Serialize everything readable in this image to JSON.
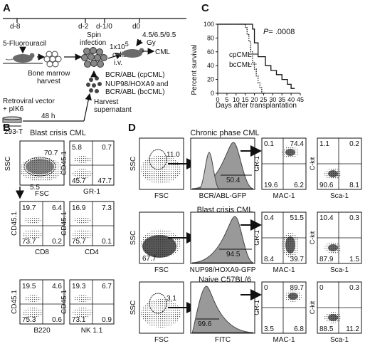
{
  "panels": {
    "A": "A",
    "B": "B",
    "C": "C",
    "D": "D"
  },
  "panelA": {
    "timeline": [
      "d-8",
      "d-2",
      "d-1/0",
      "d0"
    ],
    "fluorouracil": "5-Fluorouracil",
    "bone_marrow": "Bone marrow",
    "harvest": "harvest",
    "spin": "Spin",
    "infection": "infection",
    "cells_num": "1x10",
    "cells_exp": "5",
    "cells": "cells",
    "iv": "i.v.",
    "gy1": "4.5/6.5/9.5",
    "gy2": "Gy",
    "cml": "CML",
    "bcrabl": "BCR/ABL (cpCML)",
    "nup1": "NUP98/HOXA9 and",
    "nup2": "BCR/ABL (bcCML)",
    "harvest_sup1": "Harvest",
    "harvest_sup2": "supernatant",
    "retro1": "Retroviral vector",
    "retro2": "+ pIK6",
    "hours": "48 h",
    "cell_line": "293-T"
  },
  "panelC": {
    "pvalue_label": "P",
    "pvalue": "= .0008",
    "series_label_1": "cpCML",
    "series_label_2": "bcCML"
  },
  "chart_data": {
    "type": "line",
    "ylabel": "Percent survival",
    "xlabel": "Days after transplantation",
    "xlim": [
      0,
      45
    ],
    "ylim": [
      0,
      100
    ],
    "xticks": [
      "0",
      "5",
      "10",
      "15",
      "20",
      "25",
      "30",
      "35",
      "40",
      "45"
    ],
    "yticks": [
      "0",
      "20",
      "40",
      "60",
      "80",
      "100"
    ],
    "series": [
      {
        "name": "cpCML",
        "style": "solid",
        "x": [
          0,
          19,
          19,
          20,
          20,
          22,
          22,
          26,
          26,
          29,
          29,
          32,
          32,
          35,
          35,
          38,
          38,
          40,
          40,
          42
        ],
        "y": [
          100,
          100,
          93,
          93,
          73,
          73,
          53,
          53,
          40,
          40,
          33,
          33,
          27,
          27,
          20,
          20,
          13,
          13,
          7,
          7
        ]
      },
      {
        "name": "bcCML",
        "style": "dotted",
        "x": [
          0,
          15,
          15,
          16,
          16,
          17,
          17,
          18,
          18,
          19,
          19,
          20,
          20,
          21,
          21,
          22,
          22,
          23,
          23,
          24,
          24,
          26
        ],
        "y": [
          100,
          100,
          95,
          95,
          85,
          85,
          75,
          75,
          60,
          60,
          45,
          45,
          35,
          35,
          25,
          25,
          15,
          15,
          8,
          8,
          0,
          0
        ]
      }
    ]
  },
  "panelB": {
    "title": "Blast crisis CML",
    "ssc": "SSC",
    "fsc": "FSC",
    "gate_top": "70.7",
    "gate_bottom": "5.5",
    "q_gr1": {
      "ylabel": "CD45.1",
      "xlabel": "GR-1",
      "q": [
        "5.8",
        "0.7",
        "45.7",
        "47.7"
      ]
    },
    "q_cd8": {
      "ylabel": "CD45.1",
      "xlabel": "CD8",
      "q": [
        "19.7",
        "6.4",
        "73.7",
        "0.2"
      ]
    },
    "q_cd4": {
      "ylabel": "CD45.1",
      "xlabel": "CD4",
      "q": [
        "16.9",
        "7.3",
        "75.7",
        "0.1"
      ]
    },
    "q_b220": {
      "ylabel": "CD45.1",
      "xlabel": "B220",
      "q": [
        "19.5",
        "4.6",
        "75.3",
        "0.6"
      ]
    },
    "q_nk": {
      "ylabel": "CD45.1",
      "xlabel": "NK 1.1",
      "q": [
        "19.3",
        "6.7",
        "73.1",
        "0.9"
      ]
    }
  },
  "panelD": {
    "titles": [
      "Chronic phase CML",
      "Blast crisis CML",
      "Naive C57BL/6"
    ],
    "ssc": "SSC",
    "fsc": "FSC",
    "gates": [
      "11.0",
      "67.7",
      "3.1"
    ],
    "hist_labels": [
      "BCR/ABL-GFP",
      "NUP98/HOXA9-GFP",
      "FITC"
    ],
    "hist_values": [
      "50.4",
      "94.5",
      "99.6"
    ],
    "gr1": "GR-1",
    "mac1": "MAC-1",
    "ckit": "C-kit",
    "sca1": "Sca-1",
    "mac_q": [
      [
        "0.1",
        "74.4",
        "19.6",
        "6.2"
      ],
      [
        "0.4",
        "51.5",
        "8.4",
        "39.7"
      ],
      [
        "0",
        "89.7",
        "3.5",
        "6.8"
      ]
    ],
    "ckit_q": [
      [
        "1.1",
        "0.2",
        "90.6",
        "8.1"
      ],
      [
        "10.4",
        "0.3",
        "87.9",
        "1.5"
      ],
      [
        "0",
        "0.3",
        "88.5",
        "11.2"
      ]
    ]
  }
}
